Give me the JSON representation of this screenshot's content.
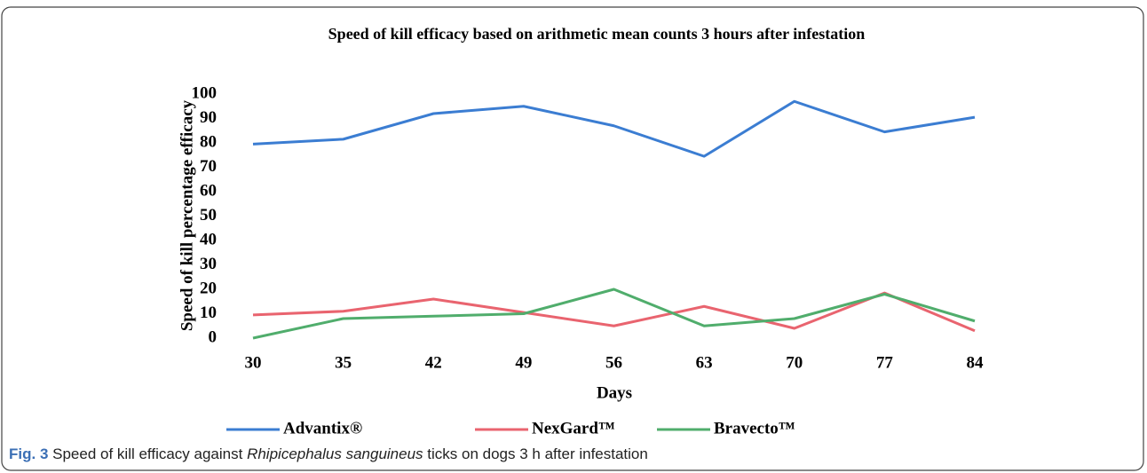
{
  "chart_data": {
    "type": "line",
    "title": "Speed of kill efficacy based on arithmetic mean counts 3 hours after infestation",
    "x_label": "Days",
    "y_label": "Speed of kill percentage efficacy",
    "categories": [
      "30",
      "35",
      "42",
      "49",
      "56",
      "63",
      "70",
      "77",
      "84"
    ],
    "series": [
      {
        "name": "Advantix®",
        "color": "#3b7dd2",
        "values": [
          79.5,
          81.5,
          92,
          95,
          87,
          74.5,
          97,
          84.5,
          90.5
        ]
      },
      {
        "name": "NexGard™",
        "color": "#e9646f",
        "values": [
          9.5,
          11,
          16,
          10.5,
          5,
          13,
          4,
          18.5,
          3
        ]
      },
      {
        "name": "Bravecto™",
        "color": "#50ad6c",
        "values": [
          0,
          8,
          9,
          10,
          20,
          5,
          8,
          18,
          7
        ]
      }
    ],
    "ylim": [
      0,
      100
    ],
    "yticks": [
      0,
      10,
      20,
      30,
      40,
      50,
      60,
      70,
      80,
      90,
      100
    ],
    "grid": false,
    "legend": "bottom"
  },
  "caption": {
    "label": "Fig. 3",
    "text_before": "Speed of kill efficacy against",
    "species": "Rhipicephalus sanguineus",
    "text_after": "ticks on dogs 3 h after infestation"
  }
}
